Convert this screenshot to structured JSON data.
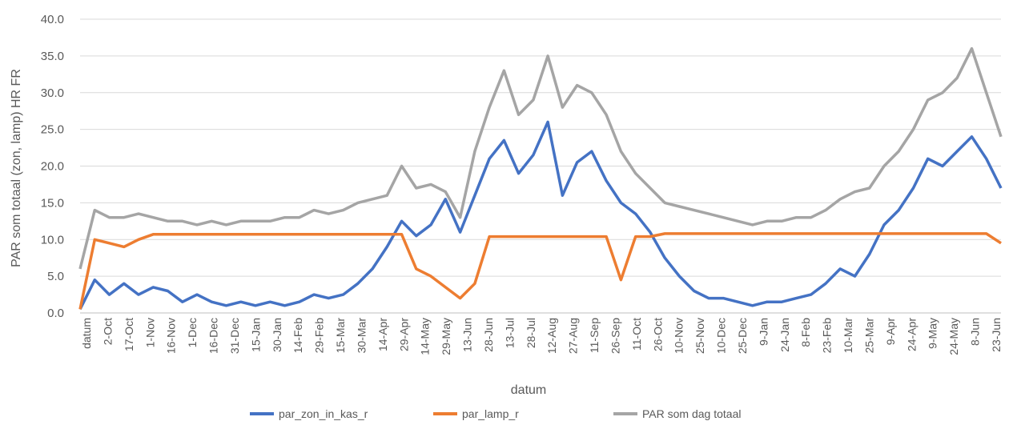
{
  "chart_data": {
    "type": "line",
    "title": "",
    "xlabel": "datum",
    "ylabel": "PAR som totaal (zon, lamp) HR FR",
    "ylim": [
      0,
      40
    ],
    "yticks": [
      "0.0",
      "5.0",
      "10.0",
      "15.0",
      "20.0",
      "25.0",
      "30.0",
      "35.0",
      "40.0"
    ],
    "grid": "horizontal",
    "legend_position": "bottom",
    "x_tick_labels": [
      "datum",
      "2-Oct",
      "17-Oct",
      "1-Nov",
      "16-Nov",
      "1-Dec",
      "16-Dec",
      "31-Dec",
      "15-Jan",
      "30-Jan",
      "14-Feb",
      "29-Feb",
      "15-Mar",
      "30-Mar",
      "14-Apr",
      "29-Apr",
      "14-May",
      "29-May",
      "13-Jun",
      "28-Jun",
      "13-Jul",
      "28-Jul",
      "12-Aug",
      "27-Aug",
      "11-Sep",
      "26-Sep",
      "11-Oct",
      "26-Oct",
      "10-Nov",
      "25-Nov",
      "10-Dec",
      "25-Dec",
      "9-Jan",
      "24-Jan",
      "8-Feb",
      "23-Feb",
      "10-Mar",
      "25-Mar",
      "9-Apr",
      "24-Apr",
      "9-May",
      "24-May",
      "8-Jun",
      "23-Jun"
    ],
    "series": [
      {
        "name": "par_zon_in_kas_r",
        "color": "#4472C4",
        "values": [
          0.5,
          4.5,
          2.5,
          4.0,
          2.5,
          3.5,
          3.0,
          1.5,
          2.5,
          1.5,
          1.0,
          1.5,
          1.0,
          1.5,
          1.0,
          1.5,
          2.5,
          2.0,
          2.5,
          4.0,
          6.0,
          9.0,
          12.5,
          10.5,
          12.0,
          15.5,
          11.0,
          16.0,
          21.0,
          23.5,
          19.0,
          21.5,
          26.0,
          16.0,
          20.5,
          22.0,
          18.0,
          15.0,
          13.5,
          11.0,
          7.5,
          5.0,
          3.0,
          2.0,
          2.0,
          1.5,
          1.0,
          1.5,
          1.5,
          2.0,
          2.5,
          4.0,
          6.0,
          5.0,
          8.0,
          12.0,
          14.0,
          17.0,
          21.0,
          20.0,
          22.0,
          24.0,
          21.0,
          17.0
        ]
      },
      {
        "name": "par_lamp_r",
        "color": "#ED7D31",
        "values": [
          0.5,
          10.0,
          9.5,
          9.0,
          10.0,
          10.7,
          10.7,
          10.7,
          10.7,
          10.7,
          10.7,
          10.7,
          10.7,
          10.7,
          10.7,
          10.7,
          10.7,
          10.7,
          10.7,
          10.7,
          10.7,
          10.7,
          10.7,
          6.0,
          5.0,
          3.5,
          2.0,
          4.0,
          10.4,
          10.4,
          10.4,
          10.4,
          10.4,
          10.4,
          10.4,
          10.4,
          10.4,
          4.5,
          10.4,
          10.4,
          10.8,
          10.8,
          10.8,
          10.8,
          10.8,
          10.8,
          10.8,
          10.8,
          10.8,
          10.8,
          10.8,
          10.8,
          10.8,
          10.8,
          10.8,
          10.8,
          10.8,
          10.8,
          10.8,
          10.8,
          10.8,
          10.8,
          10.8,
          9.5
        ]
      },
      {
        "name": "PAR som dag totaal",
        "color": "#A5A5A5",
        "values": [
          6.0,
          14.0,
          13.0,
          13.0,
          13.5,
          13.0,
          12.5,
          12.5,
          12.0,
          12.5,
          12.0,
          12.5,
          12.5,
          12.5,
          13.0,
          13.0,
          14.0,
          13.5,
          14.0,
          15.0,
          15.5,
          16.0,
          20.0,
          17.0,
          17.5,
          16.5,
          13.0,
          22.0,
          28.0,
          33.0,
          27.0,
          29.0,
          35.0,
          28.0,
          31.0,
          30.0,
          27.0,
          22.0,
          19.0,
          17.0,
          15.0,
          14.5,
          14.0,
          13.5,
          13.0,
          12.5,
          12.0,
          12.5,
          12.5,
          13.0,
          13.0,
          14.0,
          15.5,
          16.5,
          17.0,
          20.0,
          22.0,
          25.0,
          29.0,
          30.0,
          32.0,
          36.0,
          30.0,
          24.0
        ]
      }
    ]
  }
}
